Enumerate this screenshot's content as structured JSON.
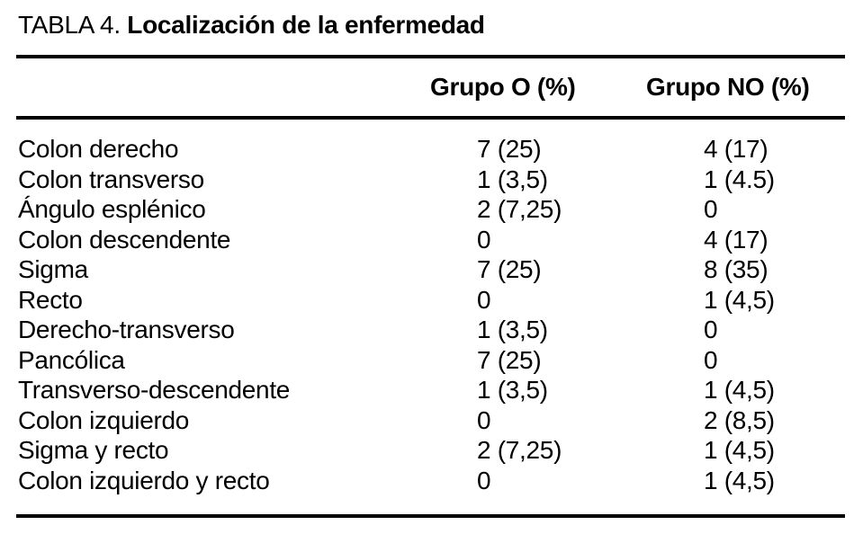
{
  "table": {
    "title_prefix": "TABLA 4. ",
    "title": "Localización de la enfermedad",
    "columns": {
      "grupo_o": "Grupo O (%)",
      "grupo_no": "Grupo NO (%)"
    },
    "rows": [
      {
        "label": "Colon derecho",
        "grupo_o": "7 (25)",
        "grupo_no": "4 (17)"
      },
      {
        "label": "Colon transverso",
        "grupo_o": "1 (3,5)",
        "grupo_no": "1 (4.5)"
      },
      {
        "label": "Ángulo esplénico",
        "grupo_o": "2 (7,25)",
        "grupo_no": "0"
      },
      {
        "label": "Colon descendente",
        "grupo_o": "0",
        "grupo_no": "4 (17)"
      },
      {
        "label": "Sigma",
        "grupo_o": "7 (25)",
        "grupo_no": "8 (35)"
      },
      {
        "label": "Recto",
        "grupo_o": "0",
        "grupo_no": "1 (4,5)"
      },
      {
        "label": "Derecho-transverso",
        "grupo_o": "1 (3,5)",
        "grupo_no": "0"
      },
      {
        "label": "Pancólica",
        "grupo_o": "7 (25)",
        "grupo_no": "0"
      },
      {
        "label": "Transverso-descendente",
        "grupo_o": "1 (3,5)",
        "grupo_no": "1 (4,5)"
      },
      {
        "label": "Colon izquierdo",
        "grupo_o": "0",
        "grupo_no": "2 (8,5)"
      },
      {
        "label": "Sigma y recto",
        "grupo_o": "2 (7,25)",
        "grupo_no": "1 (4,5)"
      },
      {
        "label": "Colon izquierdo y recto",
        "grupo_o": "0",
        "grupo_no": "1 (4,5)"
      }
    ],
    "colors": {
      "text": "#000000",
      "background": "#ffffff",
      "rule": "#000000"
    }
  }
}
